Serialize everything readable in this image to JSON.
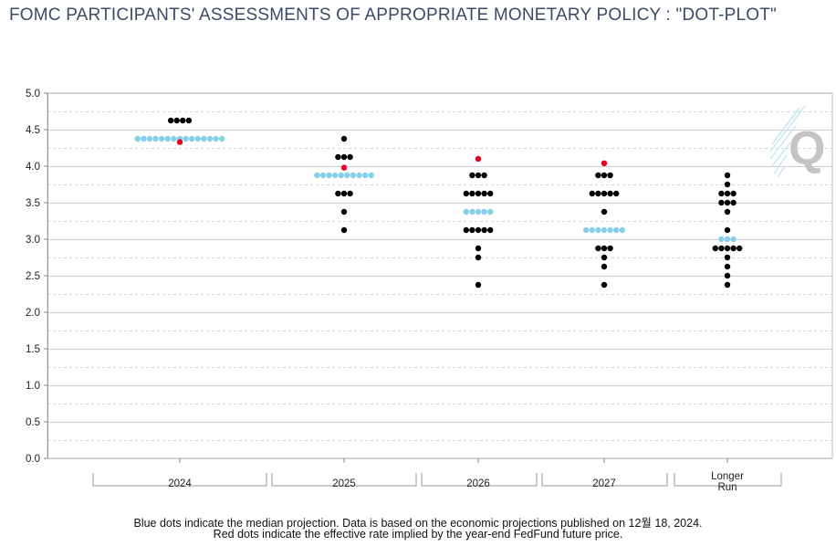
{
  "title": "FOMC PARTICIPANTS' ASSESSMENTS OF APPROPRIATE MONETARY POLICY : \"DOT-PLOT\"",
  "notes": [
    "Blue dots indicate the median projection. Data is based on the economic projections published on 12월 18, 2024.",
    "Red dots indicate the effective rate implied by the year-end FedFund future price."
  ],
  "logo_text": "Q",
  "colors": {
    "median": "#87ceeb",
    "participant": "#000000",
    "futures": "#e8001c",
    "grid": "#c8c8c8"
  },
  "chart_data": {
    "type": "scatter",
    "title": "FOMC PARTICIPANTS' ASSESSMENTS OF APPROPRIATE MONETARY POLICY : \"DOT-PLOT\"",
    "xlabel": "",
    "ylabel": "",
    "ylim": [
      0,
      5
    ],
    "yticks": [
      "0.0",
      "0.5",
      "1.0",
      "1.5",
      "2.0",
      "2.5",
      "3.0",
      "3.5",
      "4.0",
      "4.5",
      "5.0"
    ],
    "grid": true,
    "categories": [
      {
        "label": "2024",
        "label_lines": [
          "2024"
        ],
        "participants": [
          [
            4.625,
            4
          ]
        ],
        "median": {
          "value": 4.375,
          "count": 15
        },
        "futures": 4.33
      },
      {
        "label": "2025",
        "label_lines": [
          "2025"
        ],
        "participants": [
          [
            4.375,
            1
          ],
          [
            4.125,
            3
          ],
          [
            3.625,
            3
          ],
          [
            3.375,
            1
          ],
          [
            3.125,
            1
          ]
        ],
        "median": {
          "value": 3.875,
          "count": 10
        },
        "futures": 3.98
      },
      {
        "label": "2026",
        "label_lines": [
          "2026"
        ],
        "participants": [
          [
            3.875,
            3
          ],
          [
            3.625,
            5
          ],
          [
            3.125,
            5
          ],
          [
            2.875,
            1
          ],
          [
            2.75,
            1
          ],
          [
            2.375,
            1
          ]
        ],
        "median": {
          "value": 3.375,
          "count": 5
        },
        "futures": 4.1
      },
      {
        "label": "2027",
        "label_lines": [
          "2027"
        ],
        "participants": [
          [
            3.875,
            3
          ],
          [
            3.625,
            5
          ],
          [
            3.375,
            1
          ],
          [
            2.875,
            3
          ],
          [
            2.75,
            1
          ],
          [
            2.625,
            1
          ],
          [
            2.375,
            1
          ]
        ],
        "median": {
          "value": 3.125,
          "count": 7
        },
        "futures": 4.04
      },
      {
        "label": "Longer Run",
        "label_lines": [
          "Longer",
          "Run"
        ],
        "participants": [
          [
            3.875,
            1
          ],
          [
            3.75,
            1
          ],
          [
            3.625,
            3
          ],
          [
            3.5,
            3
          ],
          [
            3.375,
            1
          ],
          [
            3.125,
            1
          ],
          [
            2.875,
            5
          ],
          [
            2.75,
            1
          ],
          [
            2.625,
            1
          ],
          [
            2.5,
            1
          ],
          [
            2.375,
            1
          ]
        ],
        "median": {
          "value": 3.0,
          "count": 3
        },
        "futures": null
      }
    ]
  }
}
